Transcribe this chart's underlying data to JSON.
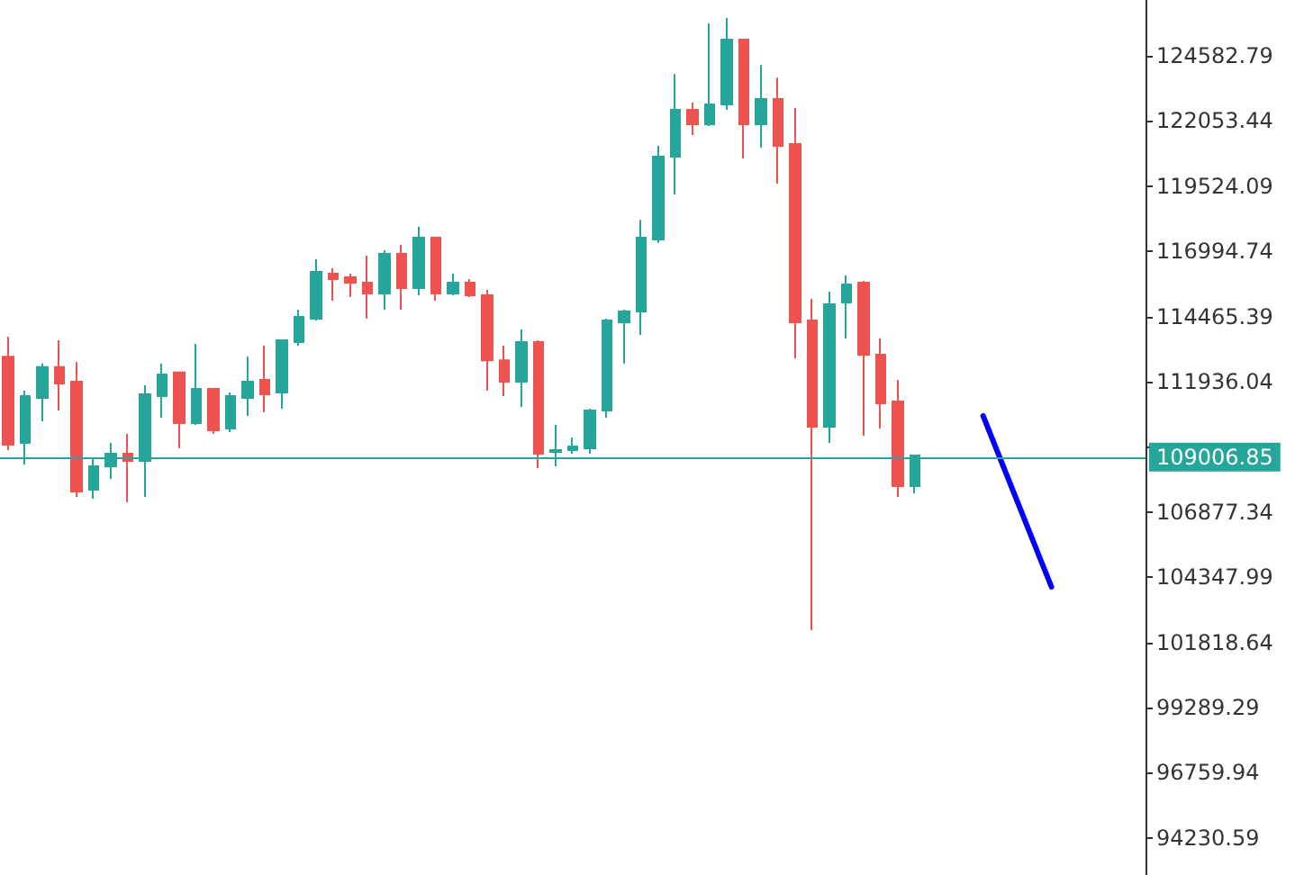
{
  "chart_data": {
    "type": "candlestick",
    "categories": [
      null,
      null,
      null,
      null,
      null,
      null,
      null,
      null,
      null,
      null,
      null,
      null,
      null,
      null,
      null,
      null,
      null,
      null,
      null,
      null,
      null,
      null,
      null,
      null,
      null,
      null,
      null,
      null,
      null,
      null,
      null,
      null,
      null,
      null,
      null,
      null,
      null,
      null,
      null,
      null,
      null,
      null,
      null,
      null,
      null,
      null,
      null,
      null,
      null,
      null,
      null,
      null,
      null,
      null,
      null,
      null,
      null,
      null,
      null,
      null,
      null,
      null,
      null,
      null,
      null,
      null,
      null
    ],
    "ohlc": [
      [
        112910,
        113680,
        109280,
        109490
      ],
      [
        109560,
        111590,
        108720,
        111380
      ],
      [
        111310,
        112640,
        110400,
        112500
      ],
      [
        112500,
        113540,
        110820,
        111870
      ],
      [
        111940,
        112700,
        107460,
        107670
      ],
      [
        107740,
        109000,
        107390,
        108650
      ],
      [
        108650,
        109560,
        108160,
        109140
      ],
      [
        109140,
        109910,
        107260,
        108860
      ],
      [
        108860,
        111800,
        107460,
        111450
      ],
      [
        111380,
        112640,
        110540,
        112220
      ],
      [
        112290,
        112290,
        109350,
        110330
      ],
      [
        110330,
        113400,
        110260,
        111660
      ],
      [
        111660,
        111660,
        109910,
        110050
      ],
      [
        110120,
        111520,
        109980,
        111380
      ],
      [
        111310,
        112910,
        110610,
        111940
      ],
      [
        112010,
        113330,
        110750,
        111450
      ],
      [
        111520,
        113540,
        110890,
        113540
      ],
      [
        113470,
        114730,
        113330,
        114450
      ],
      [
        114380,
        116690,
        114310,
        116200
      ],
      [
        116130,
        116340,
        115080,
        115920
      ],
      [
        115990,
        116130,
        115220,
        115780
      ],
      [
        115780,
        116830,
        114380,
        115360
      ],
      [
        115360,
        117040,
        114730,
        116900
      ],
      [
        116900,
        117250,
        114730,
        115570
      ],
      [
        115570,
        117950,
        115290,
        117530
      ],
      [
        117530,
        117530,
        115080,
        115360
      ],
      [
        115360,
        116130,
        115290,
        115780
      ],
      [
        115780,
        115920,
        115220,
        115290
      ],
      [
        115290,
        115500,
        111590,
        112770
      ],
      [
        112770,
        113330,
        111380,
        111940
      ],
      [
        111940,
        113960,
        110960,
        113470
      ],
      [
        113470,
        113540,
        108580,
        109140
      ],
      [
        109210,
        110260,
        108650,
        109280
      ],
      [
        109280,
        109770,
        109140,
        109420
      ],
      [
        109350,
        110890,
        109140,
        110820
      ],
      [
        110820,
        114380,
        110540,
        114310
      ],
      [
        114240,
        114730,
        112640,
        114660
      ],
      [
        114660,
        118220,
        113750,
        117530
      ],
      [
        117460,
        121090,
        117320,
        120670
      ],
      [
        120670,
        123880,
        119200,
        122490
      ],
      [
        122490,
        122770,
        121510,
        121930
      ],
      [
        121930,
        125840,
        121860,
        122700
      ],
      [
        122700,
        126050,
        122490,
        125210
      ],
      [
        125210,
        125210,
        120600,
        121930
      ],
      [
        121930,
        124230,
        121020,
        122910
      ],
      [
        122910,
        123740,
        119620,
        121090
      ],
      [
        121160,
        122560,
        112840,
        114240
      ],
      [
        114310,
        115150,
        102290,
        110190
      ],
      [
        110190,
        115430,
        109560,
        114940
      ],
      [
        115010,
        116060,
        113610,
        115710
      ],
      [
        115780,
        115850,
        109840,
        112980
      ],
      [
        112980,
        113610,
        110120,
        111100
      ],
      [
        111170,
        112010,
        107460,
        107880
      ],
      [
        107880,
        109070,
        107600,
        109070
      ],
      null,
      null,
      null,
      null,
      null,
      null,
      null,
      null,
      null,
      null,
      null,
      null,
      null
    ],
    "colors": [
      "#ef5350",
      "#26a69a",
      "#26a69a",
      "#ef5350",
      "#ef5350",
      "#26a69a",
      "#26a69a",
      "#ef5350",
      "#26a69a",
      "#26a69a",
      "#ef5350",
      "#26a69a",
      "#ef5350",
      "#26a69a",
      "#26a69a",
      "#ef5350",
      "#26a69a",
      "#26a69a",
      "#26a69a",
      "#ef5350",
      "#ef5350",
      "#ef5350",
      "#26a69a",
      "#ef5350",
      "#26a69a",
      "#ef5350",
      "#26a69a",
      "#ef5350",
      "#ef5350",
      "#ef5350",
      "#26a69a",
      "#ef5350",
      "#26a69a",
      "#26a69a",
      "#26a69a",
      "#26a69a",
      "#26a69a",
      "#26a69a",
      "#26a69a",
      "#26a69a",
      "#ef5350",
      "#26a69a",
      "#26a69a",
      "#ef5350",
      "#26a69a",
      "#ef5350",
      "#ef5350",
      "#ef5350",
      "#26a69a",
      "#26a69a",
      "#ef5350",
      "#ef5350",
      "#ef5350",
      "#26a69a",
      null,
      null,
      null,
      null,
      null,
      null,
      null,
      null,
      null,
      null,
      null,
      null,
      null
    ],
    "series": [
      {
        "type": "line",
        "color": "#0000ff",
        "values": [
          null,
          null,
          null,
          null,
          null,
          null,
          null,
          null,
          null,
          null,
          null,
          null,
          null,
          null,
          null,
          null,
          null,
          null,
          null,
          null,
          null,
          null,
          null,
          null,
          null,
          null,
          null,
          null,
          null,
          null,
          null,
          null,
          null,
          null,
          null,
          null,
          null,
          null,
          null,
          null,
          null,
          null,
          null,
          null,
          null,
          null,
          null,
          null,
          null,
          null,
          null,
          null,
          null,
          null,
          null,
          null,
          null,
          110610,
          null,
          null,
          null,
          103970,
          null,
          null,
          null,
          null,
          null
        ]
      }
    ],
    "ylim": [
      92790,
      126750
    ],
    "yticks": [
      124582.79,
      122053.44,
      119524.09,
      116994.74,
      114465.39,
      111936.04,
      {
        "value": 109406.69,
        "label": null
      },
      106877.34,
      104347.99,
      101818.64,
      99289.29,
      96759.94,
      94230.59
    ],
    "ref_lines": [
      {
        "axis": "y",
        "value": 109006.85,
        "label": "109006.85",
        "color": "#26a69a"
      }
    ],
    "tick_labels": "y",
    "grid": false
  }
}
